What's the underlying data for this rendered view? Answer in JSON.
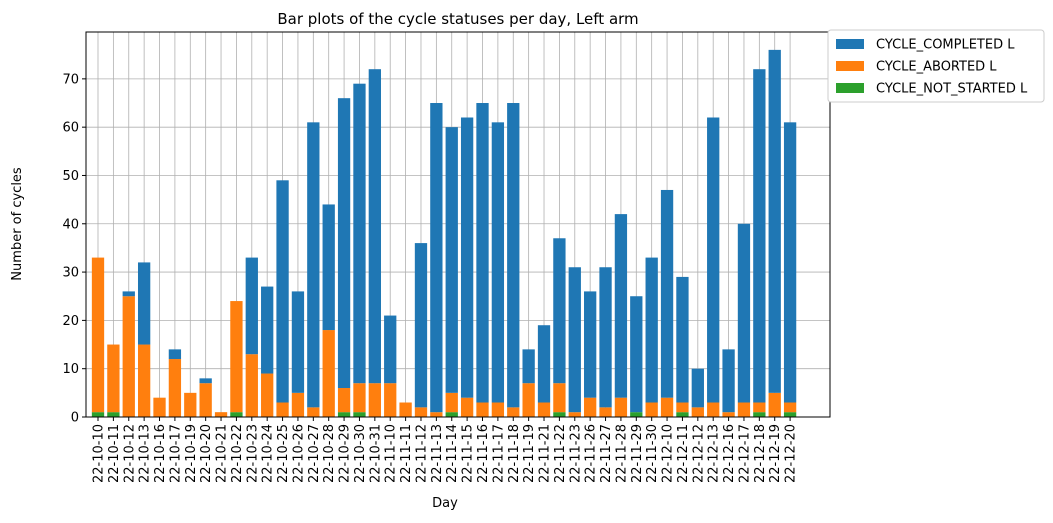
{
  "chart_data": {
    "type": "stacked_bar",
    "title": "Bar plots of the cycle statuses per day, Left arm",
    "x_label": "Day",
    "y_label": "Number of cycles",
    "categories": [
      "22-10-10",
      "22-10-11",
      "22-10-12",
      "22-10-13",
      "22-10-16",
      "22-10-17",
      "22-10-19",
      "22-10-20",
      "22-10-21",
      "22-10-22",
      "22-10-23",
      "22-10-24",
      "22-10-25",
      "22-10-26",
      "22-10-27",
      "22-10-28",
      "22-10-29",
      "22-10-30",
      "22-10-31",
      "22-11-10",
      "22-11-11",
      "22-11-12",
      "22-11-13",
      "22-11-14",
      "22-11-15",
      "22-11-16",
      "22-11-17",
      "22-11-18",
      "22-11-19",
      "22-11-21",
      "22-11-22",
      "22-11-23",
      "22-11-26",
      "22-11-27",
      "22-11-28",
      "22-11-29",
      "22-11-30",
      "22-12-10",
      "22-12-11",
      "22-12-12",
      "22-12-13",
      "22-12-16",
      "22-12-17",
      "22-12-18",
      "22-12-19",
      "22-12-20"
    ],
    "series": [
      {
        "name": "CYCLE_COMPLETED L",
        "color": "#1f77b4",
        "values": [
          0,
          0,
          1,
          17,
          0,
          2,
          0,
          1,
          0,
          0,
          20,
          18,
          46,
          21,
          59,
          26,
          60,
          62,
          65,
          14,
          0,
          34,
          64,
          55,
          58,
          62,
          58,
          63,
          7,
          16,
          30,
          30,
          22,
          29,
          38,
          24,
          30,
          43,
          26,
          8,
          59,
          13,
          37,
          69,
          71,
          58
        ]
      },
      {
        "name": "CYCLE_ABORTED L",
        "color": "#ff7f0e",
        "values": [
          32,
          14,
          25,
          15,
          4,
          12,
          5,
          7,
          1,
          23,
          13,
          9,
          3,
          5,
          2,
          18,
          5,
          6,
          7,
          7,
          3,
          2,
          1,
          4,
          4,
          3,
          3,
          2,
          7,
          3,
          6,
          1,
          4,
          2,
          4,
          0,
          3,
          4,
          2,
          2,
          3,
          1,
          3,
          2,
          5,
          2
        ]
      },
      {
        "name": "CYCLE_NOT_STARTED L",
        "color": "#2ca02c",
        "values": [
          1,
          1,
          0,
          0,
          0,
          0,
          0,
          0,
          0,
          1,
          0,
          0,
          0,
          0,
          0,
          0,
          1,
          1,
          0,
          0,
          0,
          0,
          0,
          1,
          0,
          0,
          0,
          0,
          0,
          0,
          1,
          0,
          0,
          0,
          0,
          1,
          0,
          0,
          1,
          0,
          0,
          0,
          0,
          1,
          0,
          1
        ]
      }
    ],
    "ylim": [
      0,
      79.7
    ],
    "yticks": [
      0,
      10,
      20,
      30,
      40,
      50,
      60,
      70
    ],
    "grid": true,
    "legend": "outside upper right"
  }
}
